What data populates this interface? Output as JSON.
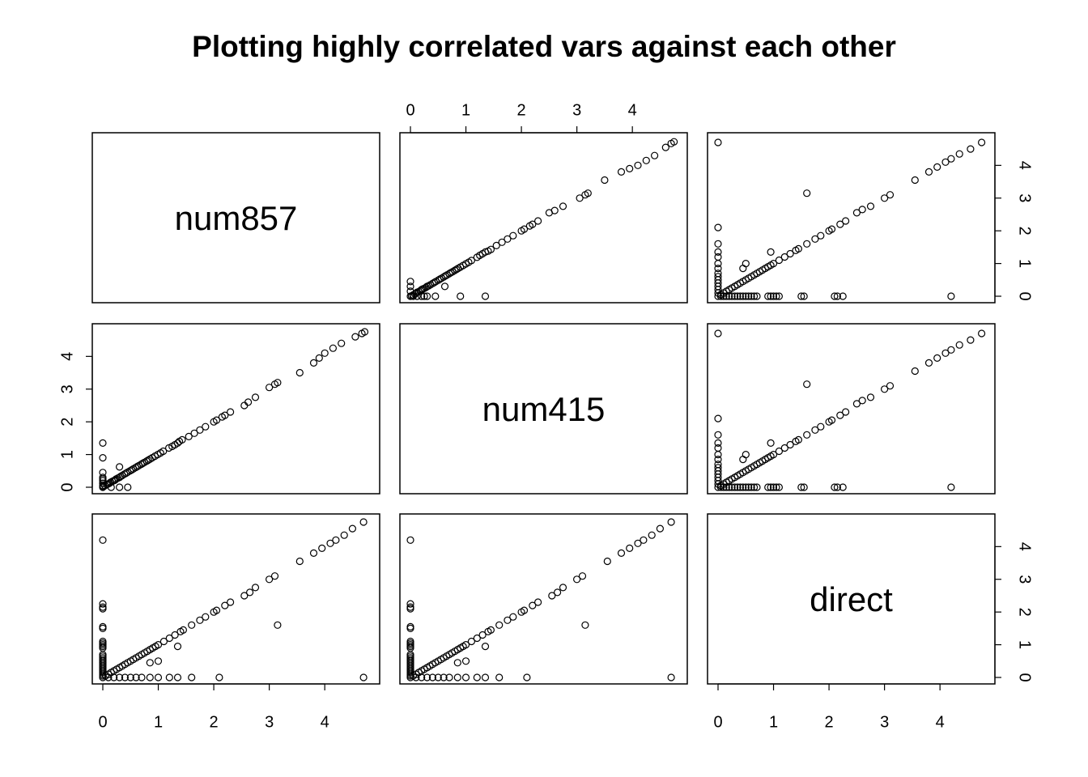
{
  "chart_data": {
    "type": "scatter",
    "kind": "scatterplot-matrix",
    "title": "Plotting highly correlated vars against each other",
    "variables": [
      "num857",
      "num415",
      "direct"
    ],
    "axis_range": [
      0,
      4.8
    ],
    "tick_values": [
      0,
      1,
      2,
      3,
      4
    ],
    "tick_labels": [
      "0",
      "1",
      "2",
      "3",
      "4"
    ],
    "marker": "open-circle",
    "grid": false,
    "legend": "none",
    "pairs": {
      "num857_num415": [
        [
          0,
          0
        ],
        [
          0.02,
          0.01
        ],
        [
          0.05,
          0.04
        ],
        [
          0.08,
          0.07
        ],
        [
          0.1,
          0.09
        ],
        [
          0.12,
          0.12
        ],
        [
          0.15,
          0.14
        ],
        [
          0.18,
          0.17
        ],
        [
          0.2,
          0.2
        ],
        [
          0.22,
          0.22
        ],
        [
          0.25,
          0.24
        ],
        [
          0.28,
          0.27
        ],
        [
          0.3,
          0.3
        ],
        [
          0.33,
          0.32
        ],
        [
          0.36,
          0.35
        ],
        [
          0.4,
          0.39
        ],
        [
          0.43,
          0.42
        ],
        [
          0.46,
          0.45
        ],
        [
          0.5,
          0.49
        ],
        [
          0.53,
          0.52
        ],
        [
          0.56,
          0.55
        ],
        [
          0.6,
          0.59
        ],
        [
          0.63,
          0.62
        ],
        [
          0.66,
          0.65
        ],
        [
          0.7,
          0.69
        ],
        [
          0.73,
          0.72
        ],
        [
          0.76,
          0.75
        ],
        [
          0.8,
          0.79
        ],
        [
          0.83,
          0.82
        ],
        [
          0.86,
          0.85
        ],
        [
          0.9,
          0.89
        ],
        [
          0.95,
          0.94
        ],
        [
          1.0,
          0.99
        ],
        [
          1.05,
          1.04
        ],
        [
          1.1,
          1.09
        ],
        [
          1.2,
          1.19
        ],
        [
          1.25,
          1.25
        ],
        [
          1.3,
          1.3
        ],
        [
          1.35,
          1.35
        ],
        [
          1.4,
          1.38
        ],
        [
          1.45,
          1.43
        ],
        [
          1.55,
          1.55
        ],
        [
          1.65,
          1.65
        ],
        [
          1.75,
          1.75
        ],
        [
          1.85,
          1.85
        ],
        [
          2.0,
          2.0
        ],
        [
          2.05,
          2.05
        ],
        [
          2.15,
          2.15
        ],
        [
          2.2,
          2.2
        ],
        [
          2.3,
          2.3
        ],
        [
          2.5,
          2.55
        ],
        [
          2.6,
          2.62
        ],
        [
          2.75,
          2.75
        ],
        [
          3.05,
          3.0
        ],
        [
          3.15,
          3.1
        ],
        [
          3.2,
          3.15
        ],
        [
          3.5,
          3.55
        ],
        [
          3.8,
          3.8
        ],
        [
          3.95,
          3.9
        ],
        [
          4.1,
          4.0
        ],
        [
          4.25,
          4.15
        ],
        [
          4.4,
          4.3
        ],
        [
          4.6,
          4.55
        ],
        [
          4.7,
          4.67
        ],
        [
          4.75,
          4.72
        ],
        [
          0,
          0.45
        ],
        [
          0,
          0.3
        ],
        [
          0,
          0.15
        ],
        [
          0.05,
          0
        ],
        [
          0.12,
          0
        ],
        [
          0.2,
          0
        ],
        [
          0.25,
          0
        ],
        [
          0.3,
          0
        ],
        [
          0.45,
          0
        ],
        [
          0.62,
          0.3
        ],
        [
          0.9,
          0
        ],
        [
          1.35,
          0
        ]
      ],
      "num857_direct": [
        [
          0,
          4.7
        ],
        [
          0,
          2.1
        ],
        [
          0,
          1.6
        ],
        [
          0,
          1.35
        ],
        [
          0,
          1.2
        ],
        [
          0,
          1.0
        ],
        [
          0,
          0.85
        ],
        [
          0,
          0.7
        ],
        [
          0,
          0.6
        ],
        [
          0,
          0.5
        ],
        [
          0,
          0.4
        ],
        [
          0,
          0.3
        ],
        [
          0,
          0.2
        ],
        [
          0,
          0.1
        ],
        [
          0,
          0
        ],
        [
          0.05,
          0
        ],
        [
          0.1,
          0
        ],
        [
          0.15,
          0
        ],
        [
          0.2,
          0
        ],
        [
          0.25,
          0
        ],
        [
          0.3,
          0
        ],
        [
          0.35,
          0
        ],
        [
          0.4,
          0
        ],
        [
          0.45,
          0
        ],
        [
          0.5,
          0
        ],
        [
          0.55,
          0
        ],
        [
          0.6,
          0
        ],
        [
          0.65,
          0
        ],
        [
          0.7,
          0
        ],
        [
          0.9,
          0
        ],
        [
          0.95,
          0
        ],
        [
          1.0,
          0
        ],
        [
          1.05,
          0
        ],
        [
          1.1,
          0
        ],
        [
          1.5,
          0
        ],
        [
          1.55,
          0
        ],
        [
          2.1,
          0
        ],
        [
          2.15,
          0
        ],
        [
          2.25,
          0
        ],
        [
          4.2,
          0
        ],
        [
          1.6,
          3.15
        ],
        [
          0.45,
          0.85
        ],
        [
          0.5,
          1.0
        ],
        [
          0.95,
          1.35
        ],
        [
          0.05,
          0.05
        ],
        [
          0.1,
          0.1
        ],
        [
          0.15,
          0.15
        ],
        [
          0.2,
          0.2
        ],
        [
          0.25,
          0.25
        ],
        [
          0.3,
          0.3
        ],
        [
          0.35,
          0.35
        ],
        [
          0.4,
          0.4
        ],
        [
          0.45,
          0.45
        ],
        [
          0.5,
          0.5
        ],
        [
          0.55,
          0.55
        ],
        [
          0.6,
          0.6
        ],
        [
          0.65,
          0.65
        ],
        [
          0.7,
          0.7
        ],
        [
          0.75,
          0.75
        ],
        [
          0.8,
          0.8
        ],
        [
          0.85,
          0.85
        ],
        [
          0.9,
          0.9
        ],
        [
          0.95,
          0.95
        ],
        [
          1.0,
          1.0
        ],
        [
          1.1,
          1.1
        ],
        [
          1.2,
          1.2
        ],
        [
          1.3,
          1.3
        ],
        [
          1.4,
          1.4
        ],
        [
          1.45,
          1.45
        ],
        [
          1.6,
          1.6
        ],
        [
          1.75,
          1.75
        ],
        [
          1.85,
          1.85
        ],
        [
          2.0,
          2.0
        ],
        [
          2.05,
          2.05
        ],
        [
          2.2,
          2.2
        ],
        [
          2.3,
          2.3
        ],
        [
          2.5,
          2.55
        ],
        [
          2.6,
          2.65
        ],
        [
          2.75,
          2.75
        ],
        [
          3.0,
          3.0
        ],
        [
          3.1,
          3.1
        ],
        [
          3.55,
          3.55
        ],
        [
          3.8,
          3.8
        ],
        [
          3.95,
          3.95
        ],
        [
          4.1,
          4.1
        ],
        [
          4.2,
          4.2
        ],
        [
          4.35,
          4.35
        ],
        [
          4.55,
          4.5
        ],
        [
          4.75,
          4.7
        ]
      ],
      "num415_direct": [
        [
          0,
          4.7
        ],
        [
          0,
          2.1
        ],
        [
          0,
          1.6
        ],
        [
          0,
          1.35
        ],
        [
          0,
          1.2
        ],
        [
          0,
          1.0
        ],
        [
          0,
          0.85
        ],
        [
          0,
          0.7
        ],
        [
          0,
          0.6
        ],
        [
          0,
          0.5
        ],
        [
          0,
          0.4
        ],
        [
          0,
          0.3
        ],
        [
          0,
          0.2
        ],
        [
          0,
          0.1
        ],
        [
          0,
          0
        ],
        [
          0.05,
          0
        ],
        [
          0.1,
          0
        ],
        [
          0.15,
          0
        ],
        [
          0.2,
          0
        ],
        [
          0.25,
          0
        ],
        [
          0.3,
          0
        ],
        [
          0.35,
          0
        ],
        [
          0.4,
          0
        ],
        [
          0.45,
          0
        ],
        [
          0.5,
          0
        ],
        [
          0.55,
          0
        ],
        [
          0.6,
          0
        ],
        [
          0.65,
          0
        ],
        [
          0.7,
          0
        ],
        [
          0.9,
          0
        ],
        [
          0.95,
          0
        ],
        [
          1.0,
          0
        ],
        [
          1.05,
          0
        ],
        [
          1.1,
          0
        ],
        [
          1.5,
          0
        ],
        [
          1.55,
          0
        ],
        [
          2.1,
          0
        ],
        [
          2.15,
          0
        ],
        [
          2.25,
          0
        ],
        [
          4.2,
          0
        ],
        [
          1.6,
          3.15
        ],
        [
          0.45,
          0.85
        ],
        [
          0.5,
          1.0
        ],
        [
          0.95,
          1.35
        ],
        [
          0.05,
          0.05
        ],
        [
          0.1,
          0.1
        ],
        [
          0.15,
          0.15
        ],
        [
          0.2,
          0.2
        ],
        [
          0.25,
          0.25
        ],
        [
          0.3,
          0.3
        ],
        [
          0.35,
          0.35
        ],
        [
          0.4,
          0.4
        ],
        [
          0.45,
          0.45
        ],
        [
          0.5,
          0.5
        ],
        [
          0.55,
          0.55
        ],
        [
          0.6,
          0.6
        ],
        [
          0.65,
          0.65
        ],
        [
          0.7,
          0.7
        ],
        [
          0.75,
          0.75
        ],
        [
          0.8,
          0.8
        ],
        [
          0.85,
          0.85
        ],
        [
          0.9,
          0.9
        ],
        [
          0.95,
          0.95
        ],
        [
          1.0,
          1.0
        ],
        [
          1.1,
          1.1
        ],
        [
          1.2,
          1.2
        ],
        [
          1.3,
          1.3
        ],
        [
          1.4,
          1.4
        ],
        [
          1.45,
          1.45
        ],
        [
          1.6,
          1.6
        ],
        [
          1.75,
          1.75
        ],
        [
          1.85,
          1.85
        ],
        [
          2.0,
          2.0
        ],
        [
          2.05,
          2.05
        ],
        [
          2.2,
          2.2
        ],
        [
          2.3,
          2.3
        ],
        [
          2.5,
          2.55
        ],
        [
          2.6,
          2.65
        ],
        [
          2.75,
          2.75
        ],
        [
          3.0,
          3.0
        ],
        [
          3.1,
          3.1
        ],
        [
          3.55,
          3.55
        ],
        [
          3.8,
          3.8
        ],
        [
          3.95,
          3.95
        ],
        [
          4.1,
          4.1
        ],
        [
          4.2,
          4.2
        ],
        [
          4.35,
          4.35
        ],
        [
          4.55,
          4.5
        ],
        [
          4.75,
          4.7
        ]
      ]
    }
  }
}
